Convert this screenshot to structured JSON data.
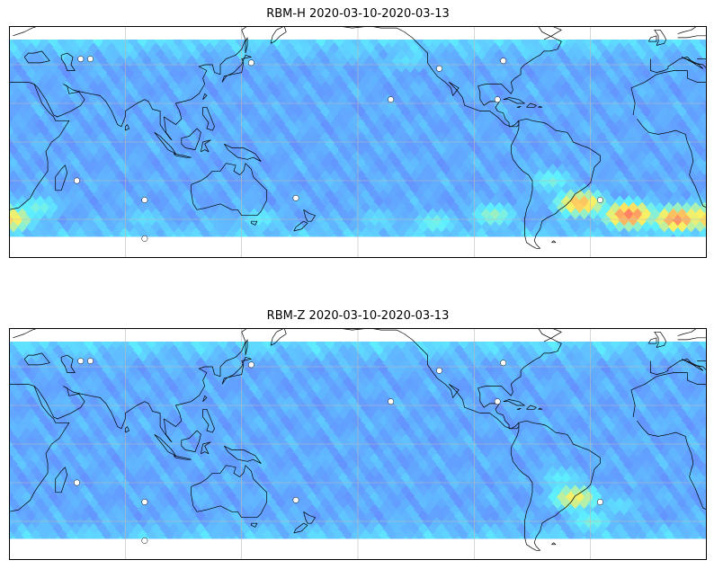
{
  "panels": [
    {
      "title": "RBM-H 2020-03-10-2020-03-13",
      "hotspots": [
        {
          "lon": -45,
          "lat": -32,
          "v": 0.85
        },
        {
          "lon": -20,
          "lat": -38,
          "v": 0.95
        },
        {
          "lon": 5,
          "lat": -40,
          "v": 0.92
        },
        {
          "lon": 15,
          "lat": -38,
          "v": 0.75
        },
        {
          "lon": 20,
          "lat": -40,
          "v": 0.8
        },
        {
          "lon": 35,
          "lat": -34,
          "v": 0.55
        },
        {
          "lon": 90,
          "lat": -40,
          "v": 0.45
        },
        {
          "lon": 150,
          "lat": -40,
          "v": 0.5
        },
        {
          "lon": -150,
          "lat": -40,
          "v": 0.45
        },
        {
          "lon": -120,
          "lat": -42,
          "v": 0.55
        },
        {
          "lon": -90,
          "lat": -38,
          "v": 0.6
        },
        {
          "lon": -60,
          "lat": -20,
          "v": 0.55
        },
        {
          "lon": -135,
          "lat": 42,
          "v": 0.45
        },
        {
          "lon": -165,
          "lat": 45,
          "v": 0.4
        },
        {
          "lon": 145,
          "lat": 45,
          "v": 0.35
        },
        {
          "lon": 0,
          "lat": 38,
          "v": 0.3
        }
      ]
    },
    {
      "title": "RBM-Z 2020-03-10-2020-03-13",
      "hotspots": [
        {
          "lon": -48,
          "lat": -28,
          "v": 0.75
        },
        {
          "lon": -40,
          "lat": -40,
          "v": 0.55
        },
        {
          "lon": -55,
          "lat": -18,
          "v": 0.5
        },
        {
          "lon": -25,
          "lat": -32,
          "v": 0.45
        },
        {
          "lon": 20,
          "lat": -40,
          "v": 0.35
        },
        {
          "lon": -75,
          "lat": -38,
          "v": 0.35
        },
        {
          "lon": -135,
          "lat": 40,
          "v": 0.3
        },
        {
          "lon": 150,
          "lat": 45,
          "v": 0.25
        }
      ]
    }
  ],
  "map": {
    "lon_min": 20,
    "lon_max": 380,
    "lat_min": -60,
    "lat_max": 60,
    "data_lat_min": -49,
    "data_lat_max": 53,
    "gridlines_lon": [
      80,
      140,
      200,
      260,
      320
    ],
    "gridlines_lat": [
      -40,
      -20,
      0,
      20,
      40
    ],
    "colormap": [
      "#6a6afa",
      "#62a2ff",
      "#5ef0ff",
      "#fdf060",
      "#ff6464"
    ],
    "islands": [
      {
        "lon": 57,
        "lat": 43
      },
      {
        "lon": 62,
        "lat": 43
      },
      {
        "lon": 55,
        "lat": -20
      },
      {
        "lon": 90,
        "lat": -30
      },
      {
        "lon": 145,
        "lat": 41
      },
      {
        "lon": 168,
        "lat": -29
      },
      {
        "lon": 217,
        "lat": 22
      },
      {
        "lon": 242,
        "lat": 38
      },
      {
        "lon": 275,
        "lat": 42
      },
      {
        "lon": 272,
        "lat": 22
      },
      {
        "lon": 325,
        "lat": -30
      },
      {
        "lon": 90,
        "lat": -50
      }
    ]
  }
}
